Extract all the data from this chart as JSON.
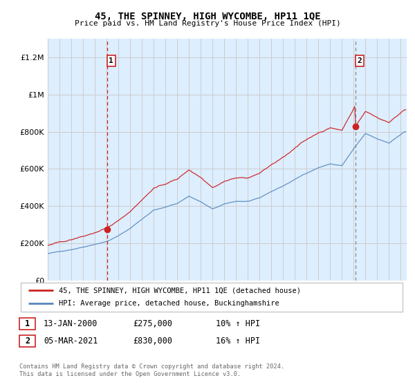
{
  "title": "45, THE SPINNEY, HIGH WYCOMBE, HP11 1QE",
  "subtitle": "Price paid vs. HM Land Registry's House Price Index (HPI)",
  "ylabel_ticks": [
    "£0",
    "£200K",
    "£400K",
    "£600K",
    "£800K",
    "£1M",
    "£1.2M"
  ],
  "ytick_values": [
    0,
    200000,
    400000,
    600000,
    800000,
    1000000,
    1200000
  ],
  "ylim": [
    0,
    1300000
  ],
  "xlim_start": 1995.0,
  "xlim_end": 2025.5,
  "sale1_x": 2000.04,
  "sale1_y": 275000,
  "sale1_label": "1",
  "sale2_x": 2021.17,
  "sale2_y": 830000,
  "sale2_label": "2",
  "hpi_color": "#5588bb",
  "price_color": "#cc2222",
  "vline1_color": "#cc2222",
  "vline2_color": "#888888",
  "grid_color": "#cccccc",
  "chart_bg_color": "#ddeeff",
  "background_color": "#ffffff",
  "legend_entry1": "45, THE SPINNEY, HIGH WYCOMBE, HP11 1QE (detached house)",
  "legend_entry2": "HPI: Average price, detached house, Buckinghamshire",
  "table_row1": [
    "1",
    "13-JAN-2000",
    "£275,000",
    "10% ↑ HPI"
  ],
  "table_row2": [
    "2",
    "05-MAR-2021",
    "£830,000",
    "16% ↑ HPI"
  ],
  "footnote1": "Contains HM Land Registry data © Crown copyright and database right 2024.",
  "footnote2": "This data is licensed under the Open Government Licence v3.0."
}
